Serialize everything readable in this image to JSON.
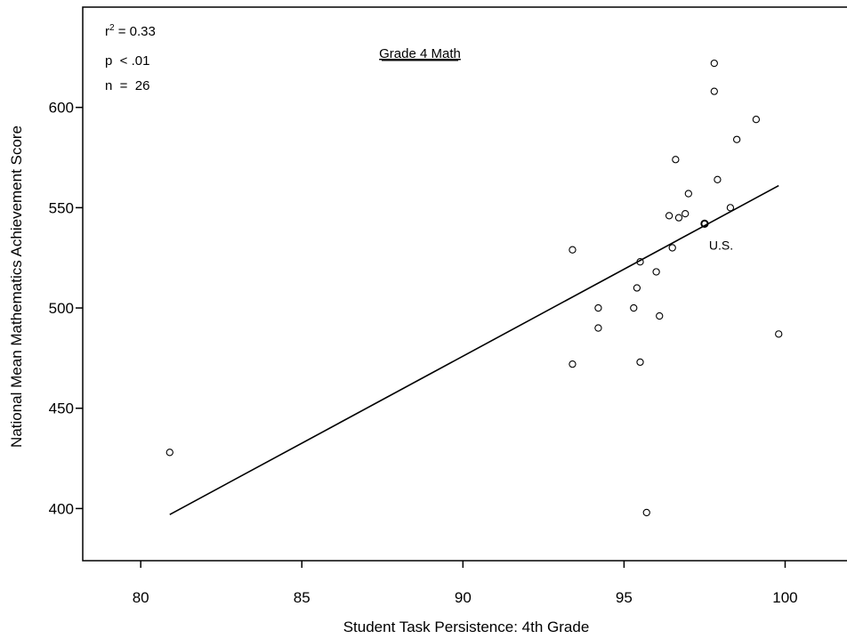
{
  "chart_data": {
    "type": "scatter",
    "title": "Grade 4 Math",
    "xlabel": "Student Task Persistence: 4th Grade",
    "ylabel": "National Mean Mathematics Achievement Score",
    "xlim": [
      78.2,
      102.5
    ],
    "ylim": [
      374,
      650
    ],
    "xticks": [
      80,
      85,
      90,
      95,
      100
    ],
    "yticks": [
      400,
      450,
      500,
      550,
      600
    ],
    "grid": false,
    "stats": {
      "r2_label": "r",
      "r2_sup": "2",
      "r2_text": " =  0.33",
      "p_text": "p  < .01",
      "n_text": "n  =  26"
    },
    "points": [
      {
        "x": 80.9,
        "y": 428
      },
      {
        "x": 93.4,
        "y": 529
      },
      {
        "x": 93.4,
        "y": 472
      },
      {
        "x": 94.2,
        "y": 500
      },
      {
        "x": 94.2,
        "y": 490
      },
      {
        "x": 95.3,
        "y": 500
      },
      {
        "x": 95.4,
        "y": 510
      },
      {
        "x": 95.5,
        "y": 523
      },
      {
        "x": 95.5,
        "y": 473
      },
      {
        "x": 95.7,
        "y": 398
      },
      {
        "x": 96.0,
        "y": 518
      },
      {
        "x": 96.1,
        "y": 496
      },
      {
        "x": 96.4,
        "y": 546
      },
      {
        "x": 96.5,
        "y": 530
      },
      {
        "x": 96.6,
        "y": 574
      },
      {
        "x": 96.7,
        "y": 545
      },
      {
        "x": 96.9,
        "y": 547
      },
      {
        "x": 97.0,
        "y": 557
      },
      {
        "x": 97.5,
        "y": 542
      },
      {
        "x": 97.8,
        "y": 622
      },
      {
        "x": 97.8,
        "y": 608
      },
      {
        "x": 97.9,
        "y": 564
      },
      {
        "x": 98.3,
        "y": 550
      },
      {
        "x": 98.5,
        "y": 584
      },
      {
        "x": 99.1,
        "y": 594
      },
      {
        "x": 99.8,
        "y": 487
      }
    ],
    "annotation": {
      "label": "U.S.",
      "x": 97.5,
      "y": 542
    },
    "fit_line": {
      "x1": 80.9,
      "y1": 397,
      "x2": 99.8,
      "y2": 561
    }
  }
}
